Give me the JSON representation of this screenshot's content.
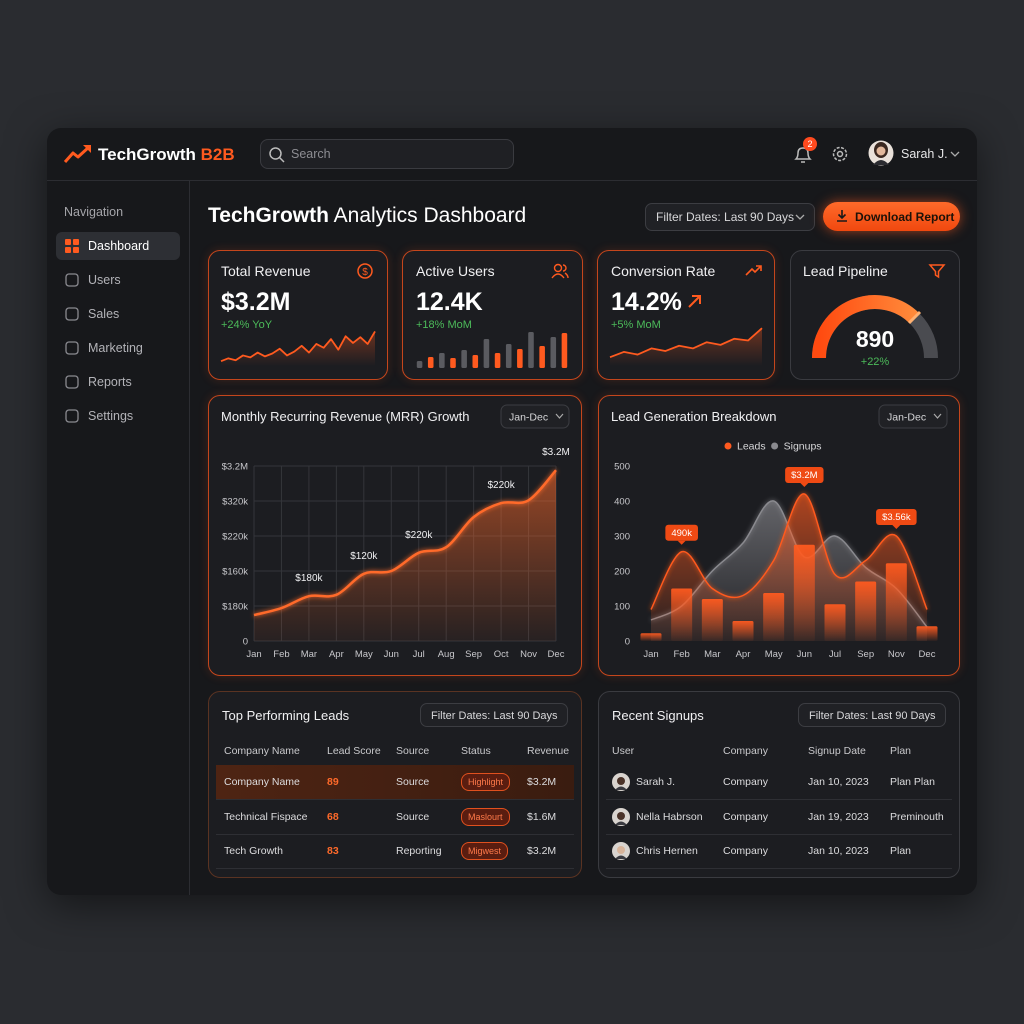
{
  "header": {
    "logo_main": "TechGrowth",
    "logo_accent": "B2B",
    "search_placeholder": "Search",
    "notification_count": 2,
    "user_name": "Sarah J."
  },
  "sidebar": {
    "heading": "Navigation",
    "items": [
      "Dashboard",
      "Users",
      "Sales",
      "Marketing",
      "Reports",
      "Settings"
    ],
    "active": 0
  },
  "page_header": {
    "title_bold": "TechGrowth",
    "title_rest": "Analytics Dashboard",
    "filter": "Filter Dates: Last 90 Days",
    "button": "Download Report"
  },
  "kpis": [
    {
      "label": "Total Revenue",
      "value": "$3.2M",
      "change": "+24% YoY",
      "sparkline": {
        "type": "line",
        "color": "#ff5a1f",
        "ylim": [
          0,
          100
        ],
        "values": [
          10,
          16,
          12,
          22,
          18,
          28,
          20,
          26,
          36,
          22,
          30,
          42,
          28,
          46,
          38,
          56,
          34,
          62,
          48,
          60,
          46,
          72
        ]
      }
    },
    {
      "label": "Active Users",
      "value": "12.4K",
      "change": "+18% MoM",
      "sparkline": {
        "type": "bar",
        "colors": [
          "#5a5b60",
          "#ff5a1f"
        ],
        "ylim": [
          0,
          100
        ],
        "values": [
          14,
          22,
          30,
          20,
          36,
          26,
          58,
          30,
          48,
          38,
          72,
          44,
          62,
          70
        ]
      }
    },
    {
      "label": "Conversion Rate",
      "value": "14.2%",
      "change": "+5% MoM",
      "sparkline": {
        "type": "line",
        "color": "#ff5a1f",
        "ylim": [
          0,
          100
        ],
        "values": [
          20,
          32,
          26,
          40,
          34,
          46,
          40,
          54,
          48,
          62,
          58,
          86
        ]
      }
    },
    {
      "label": "Lead Pipeline",
      "value": "890",
      "change": "+22%"
    }
  ],
  "chart_data": [
    {
      "type": "area",
      "title": "Monthly Recurring Revenue (MRR) Growth",
      "range_selector": "Jan-Dec",
      "categories": [
        "Jan",
        "Feb",
        "Mar",
        "Apr",
        "May",
        "Jun",
        "Jul",
        "Aug",
        "Sep",
        "Oct",
        "Nov",
        "Dec"
      ],
      "series": [
        {
          "color": "#ff6a2a",
          "values": [
            37,
            47,
            64,
            66,
            96,
            100,
            126,
            134,
            177,
            197,
            201,
            244
          ]
        }
      ],
      "ylim": [
        0,
        250
      ],
      "yticks": [
        0,
        {
          "value": 50,
          "label": "$180k"
        },
        {
          "value": 100,
          "label": "$160k"
        },
        {
          "value": 150,
          "label": "$220k"
        },
        {
          "value": 200,
          "label": "$320k"
        },
        {
          "value": 250,
          "label": "$3.2M"
        }
      ],
      "grid": true,
      "annotations": [
        {
          "category": "Mar",
          "text": "$180k"
        },
        {
          "category": "May",
          "text": "$120k"
        },
        {
          "category": "Jul",
          "text": "$220k"
        },
        {
          "category": "Oct",
          "text": "$220k"
        },
        {
          "category": "Dec",
          "text": "$3.2M"
        }
      ]
    },
    {
      "type": "area",
      "title": "Lead Generation Breakdown",
      "range_selector": "Jan-Dec",
      "categories": [
        "Jan",
        "Feb",
        "Mar",
        "Apr",
        "May",
        "Jun",
        "Jul",
        "Sep",
        "Nov",
        "Dec"
      ],
      "series": [
        {
          "name": "Leads",
          "color": "#ff5a1f",
          "values": [
            90,
            255,
            150,
            130,
            230,
            420,
            190,
            230,
            300,
            90
          ]
        },
        {
          "name": "Signups",
          "color": "#8a8a8f",
          "values": [
            60,
            100,
            200,
            280,
            400,
            240,
            300,
            210,
            150,
            40
          ]
        },
        {
          "type": "bar",
          "color": "#ff5a1f",
          "values": [
            22,
            150,
            120,
            57,
            137,
            275,
            105,
            170,
            222,
            42
          ]
        }
      ],
      "ylim": [
        0,
        500
      ],
      "yticks": [
        0,
        100,
        200,
        300,
        400,
        500
      ],
      "legend": "top",
      "annotations": [
        {
          "category": "Feb",
          "text": "490k"
        },
        {
          "category": "Jun",
          "text": "$3.2M"
        },
        {
          "category": "Nov",
          "text": "$3.56k"
        }
      ]
    }
  ],
  "tables": [
    {
      "title": "Top Performing Leads",
      "filter": "Filter Dates: Last 90 Days",
      "columns": [
        "Company Name",
        "Lead Score",
        "Source",
        "Status",
        "Revenue"
      ],
      "rows": [
        [
          "Company Name",
          89,
          "Source",
          "Highlight",
          "$3.2M"
        ],
        [
          "Technical Fispace",
          68,
          "Source",
          "Maslourt",
          "$1.6M"
        ],
        [
          "Tech Growth",
          83,
          "Reporting",
          "Migwest",
          "$3.2M"
        ]
      ],
      "highlight_row": 0
    },
    {
      "title": "Recent Signups",
      "filter": "Filter Dates: Last 90 Days",
      "columns": [
        "User",
        "Company",
        "Signup Date",
        "Plan"
      ],
      "rows": [
        [
          "Sarah J.",
          "Company",
          "Jan 10, 2023",
          "Plan Plan"
        ],
        [
          "Nella Habrson",
          "Company",
          "Jan 19, 2023",
          "Preminouth"
        ],
        [
          "Chris Hernen",
          "Company",
          "Jan 10, 2023",
          "Plan"
        ]
      ]
    }
  ]
}
